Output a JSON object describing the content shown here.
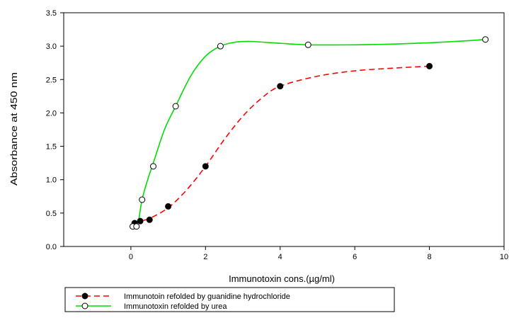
{
  "chart_data": {
    "type": "scatter",
    "title": "",
    "xlabel": "Immunotoxin cons.(µg/ml)",
    "ylabel": "Absorbance at 450 nm",
    "xlim": [
      -1.8,
      10
    ],
    "ylim": [
      0,
      3.5
    ],
    "x_ticks": [
      0,
      2,
      4,
      6,
      8,
      10
    ],
    "x_tick_labels": [
      "0",
      "2",
      "4",
      "6",
      "8",
      "10"
    ],
    "y_ticks": [
      0,
      0.5,
      1.0,
      1.5,
      2.0,
      2.5,
      3.0,
      3.5
    ],
    "y_tick_labels": [
      "0.0",
      "0.5",
      "1.0",
      "1.5",
      "2.0",
      "2.5",
      "3.0",
      "3.5"
    ],
    "grid": false,
    "legend_position": "bottom-left, below plot",
    "series": [
      {
        "name": "Immunotoin refolded by guanidine hydrochloride",
        "marker": "filled-circle",
        "line_color": "#ff0000",
        "line_style": "dashed",
        "x": [
          0.1,
          0.25,
          0.5,
          1.0,
          2.0,
          4.0,
          8.0
        ],
        "y": [
          0.35,
          0.38,
          0.4,
          0.6,
          1.2,
          2.4,
          2.7
        ],
        "curve_x": [
          0.1,
          0.25,
          0.5,
          1.0,
          1.5,
          2.0,
          2.5,
          3.0,
          3.5,
          4.0,
          5.0,
          6.0,
          7.0,
          8.0
        ],
        "curve_y": [
          0.35,
          0.38,
          0.42,
          0.58,
          0.85,
          1.2,
          1.6,
          1.95,
          2.22,
          2.4,
          2.55,
          2.63,
          2.67,
          2.7
        ]
      },
      {
        "name": "Immunotoxin refolded by urea",
        "marker": "open-circle",
        "line_color": "#00dd00",
        "line_style": "solid",
        "x": [
          0.05,
          0.15,
          0.3,
          0.6,
          1.2,
          2.4,
          4.75,
          9.5
        ],
        "y": [
          0.3,
          0.3,
          0.7,
          1.2,
          2.1,
          3.0,
          3.02,
          3.1
        ],
        "curve_x": [
          0.2,
          0.3,
          0.45,
          0.6,
          0.9,
          1.2,
          1.6,
          2.0,
          2.4,
          2.8,
          3.2,
          3.8,
          4.75,
          6.0,
          7.0,
          8.0,
          9.0,
          9.5
        ],
        "curve_y": [
          0.35,
          0.7,
          1.0,
          1.25,
          1.75,
          2.1,
          2.55,
          2.85,
          3.0,
          3.06,
          3.07,
          3.05,
          3.02,
          3.02,
          3.03,
          3.05,
          3.08,
          3.1
        ]
      }
    ]
  }
}
